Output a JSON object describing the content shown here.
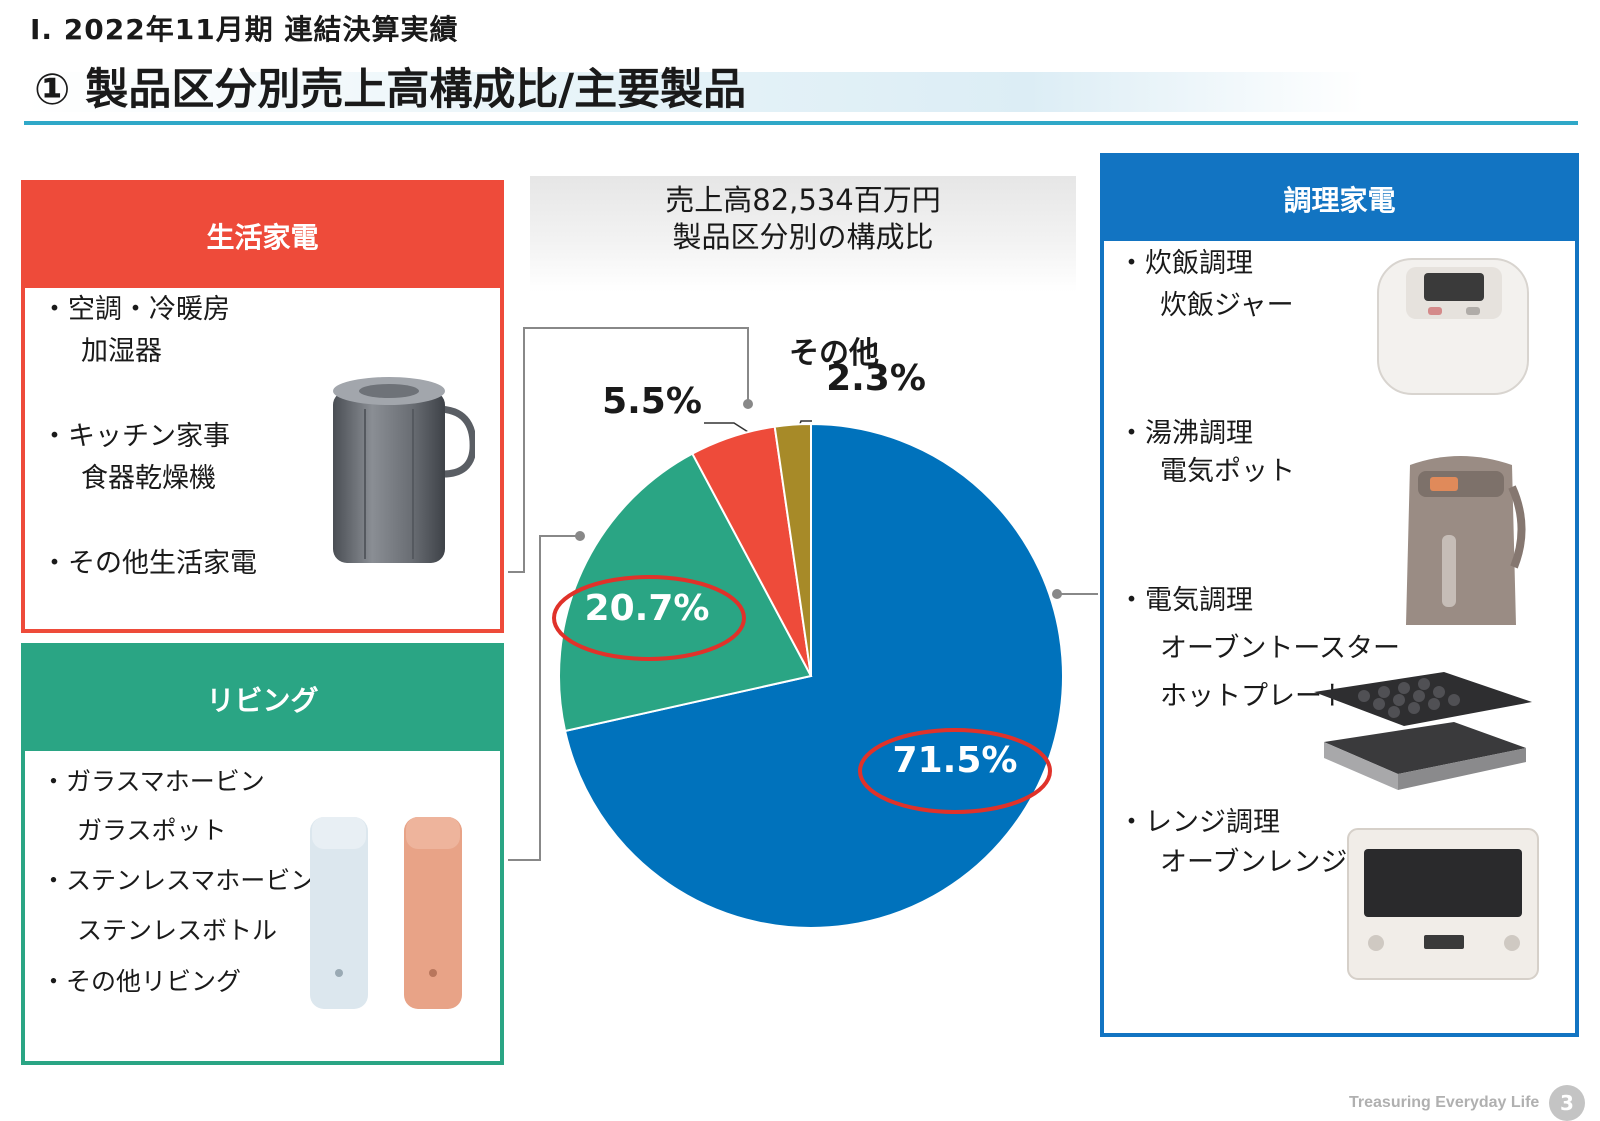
{
  "header": {
    "section": "Ⅰ. 2022年11月期  連結決算実績",
    "title": "① 製品区分別売上高構成比/主要製品"
  },
  "caption": {
    "line1": "売上高82,534百万円",
    "line2": "製品区分別の構成比"
  },
  "chart_data": {
    "type": "pie",
    "title": "売上高82,534百万円 製品区分別の構成比",
    "start": "12 o'clock, clockwise",
    "slices": [
      {
        "name": "調理家電",
        "value": 71.5,
        "label": "71.5%",
        "color": "#0072bc",
        "highlighted": true
      },
      {
        "name": "リビング",
        "value": 20.7,
        "label": "20.7%",
        "color": "#2aa584",
        "highlighted": true
      },
      {
        "name": "生活家電",
        "value": 5.5,
        "label": "5.5%",
        "color": "#ee4b3a",
        "highlighted": false
      },
      {
        "name": "その他",
        "value": 2.3,
        "label": "2.3%",
        "color": "#a78a28",
        "highlighted": false
      }
    ],
    "other_label": "その他",
    "highlight_color": "#e0322a"
  },
  "boxes": {
    "life": {
      "title": "生活家電",
      "color": "#ee4b3a",
      "items": [
        "・空調・冷暖房",
        "加湿器",
        "・キッチン家事",
        "食器乾燥機",
        "・その他生活家電"
      ]
    },
    "living": {
      "title": "リビング",
      "color": "#2aa584",
      "items": [
        "・ガラスマホービン",
        "ガラスポット",
        "・ステンレスマホービン",
        "ステンレスボトル",
        "・その他リビング"
      ]
    },
    "cooking": {
      "title": "調理家電",
      "color": "#1274c2",
      "items": [
        "・炊飯調理",
        "炊飯ジャー",
        "・湯沸調理",
        "電気ポット",
        "・電気調理",
        "オーブントースター",
        "ホットプレート",
        "・レンジ調理",
        "オーブンレンジ"
      ]
    }
  },
  "product_icons": [
    "humidifier-icon",
    "vacuum-bottle-icon",
    "rice-cooker-icon",
    "electric-pot-icon",
    "hot-plate-icon",
    "microwave-oven-icon"
  ],
  "footer": {
    "tagline": "Treasuring Everyday Life",
    "page": "3"
  }
}
